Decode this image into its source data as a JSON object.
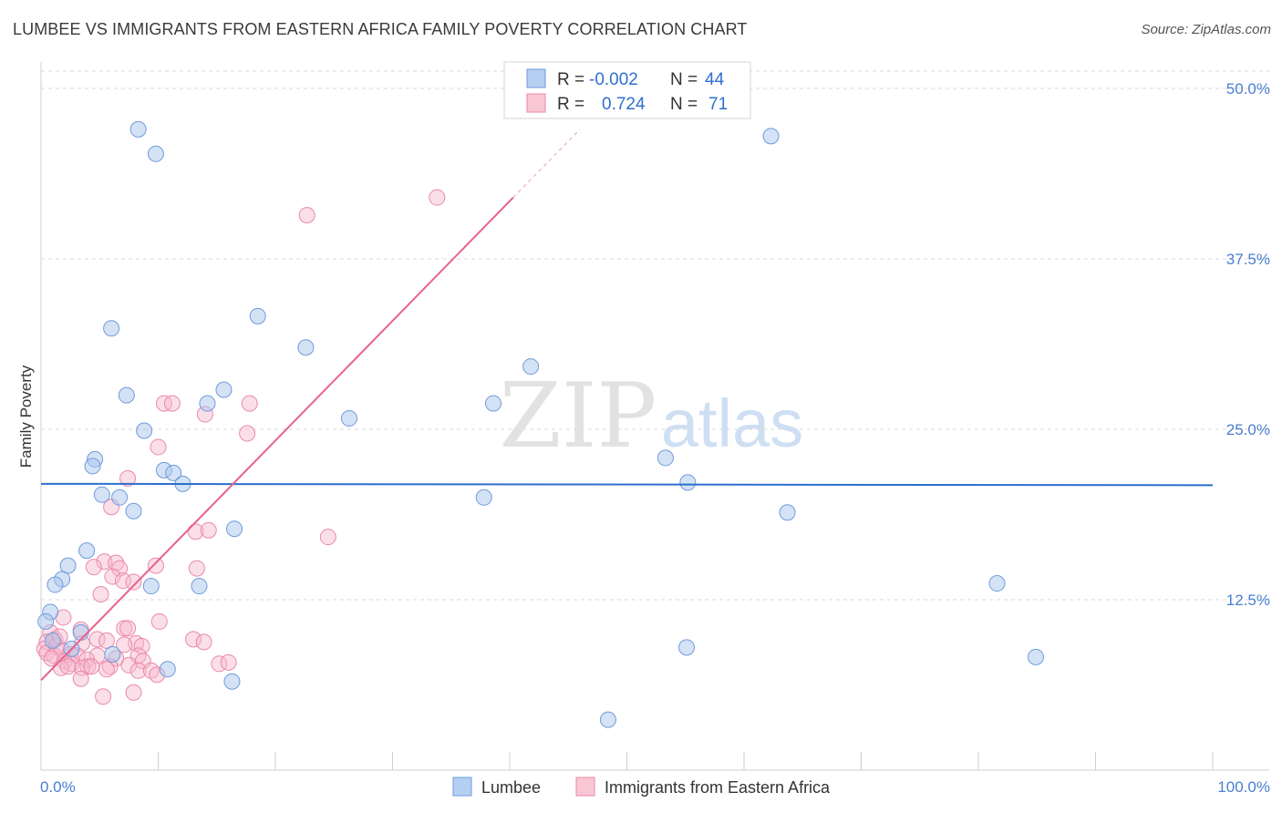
{
  "title": "LUMBEE VS IMMIGRANTS FROM EASTERN AFRICA FAMILY POVERTY CORRELATION CHART",
  "source": "Source: ZipAtlas.com",
  "watermark": {
    "zip": "ZIP",
    "atlas": "atlas"
  },
  "legend": {
    "r_label": "R =",
    "n_label": "N =",
    "rows": [
      {
        "series": "Lumbee",
        "r": "-0.002",
        "n": "44"
      },
      {
        "series": "Immigrants from Eastern Africa",
        "r": "0.724",
        "n": "71"
      }
    ]
  },
  "colors": {
    "lumbee_fill": "#a9c6ee",
    "lumbee_stroke": "#6f9bdc",
    "lumbee_line": "#2c6fcc",
    "eaf_fill": "#f6b8cb",
    "eaf_stroke": "#ea8aa8",
    "eaf_line": "#e8608e",
    "grid": "#d8d8d8",
    "tick_text": "#4a7fd0"
  },
  "chart_data": {
    "type": "scatter",
    "title": "LUMBEE VS IMMIGRANTS FROM EASTERN AFRICA FAMILY POVERTY CORRELATION CHART",
    "xlabel": "",
    "ylabel": "Family Poverty",
    "xlim": [
      0,
      100
    ],
    "ylim": [
      0,
      50
    ],
    "x_tick_labels": [
      "0.0%",
      "100.0%"
    ],
    "y_ticks": [
      12.5,
      25.0,
      37.5,
      50.0
    ],
    "y_tick_labels": [
      "12.5%",
      "25.0%",
      "37.5%",
      "50.0%"
    ],
    "grid": true,
    "legend_bottom": [
      "Lumbee",
      "Immigrants from Eastern Africa"
    ],
    "series": [
      {
        "name": "Lumbee",
        "r": -0.002,
        "n": 44,
        "trend": {
          "x": [
            0,
            100
          ],
          "y": [
            21.0,
            20.9
          ]
        },
        "points": [
          [
            8.3,
            47.0
          ],
          [
            9.8,
            45.2
          ],
          [
            62.3,
            46.5
          ],
          [
            6.0,
            32.4
          ],
          [
            18.5,
            33.3
          ],
          [
            22.6,
            31.0
          ],
          [
            41.8,
            29.6
          ],
          [
            7.3,
            27.5
          ],
          [
            15.6,
            27.9
          ],
          [
            14.2,
            26.9
          ],
          [
            38.6,
            26.9
          ],
          [
            26.3,
            25.8
          ],
          [
            8.8,
            24.9
          ],
          [
            4.6,
            22.8
          ],
          [
            4.4,
            22.3
          ],
          [
            10.5,
            22.0
          ],
          [
            11.3,
            21.8
          ],
          [
            12.1,
            21.0
          ],
          [
            55.2,
            21.1
          ],
          [
            53.3,
            22.9
          ],
          [
            5.2,
            20.2
          ],
          [
            6.7,
            20.0
          ],
          [
            37.8,
            20.0
          ],
          [
            7.9,
            19.0
          ],
          [
            63.7,
            18.9
          ],
          [
            16.5,
            17.7
          ],
          [
            3.9,
            16.1
          ],
          [
            2.3,
            15.0
          ],
          [
            1.8,
            14.0
          ],
          [
            1.2,
            13.6
          ],
          [
            9.4,
            13.5
          ],
          [
            13.5,
            13.5
          ],
          [
            81.6,
            13.7
          ],
          [
            0.8,
            11.6
          ],
          [
            0.4,
            10.9
          ],
          [
            3.4,
            10.1
          ],
          [
            6.1,
            8.5
          ],
          [
            55.1,
            9.0
          ],
          [
            84.9,
            8.3
          ],
          [
            10.8,
            7.4
          ],
          [
            16.3,
            6.5
          ],
          [
            48.4,
            3.7
          ],
          [
            2.6,
            8.9
          ],
          [
            1.0,
            9.5
          ]
        ]
      },
      {
        "name": "Immigrants from Eastern Africa",
        "r": 0.724,
        "n": 71,
        "trend": {
          "x": [
            0,
            40.3
          ],
          "y": [
            6.6,
            42.0
          ],
          "dashed_to": {
            "x": 46.0,
            "y": 47.0
          }
        },
        "points": [
          [
            33.8,
            42.0
          ],
          [
            22.7,
            40.7
          ],
          [
            10.5,
            26.9
          ],
          [
            11.2,
            26.9
          ],
          [
            17.8,
            26.9
          ],
          [
            14.0,
            26.1
          ],
          [
            17.6,
            24.7
          ],
          [
            10.0,
            23.7
          ],
          [
            7.4,
            21.4
          ],
          [
            6.0,
            19.3
          ],
          [
            13.2,
            17.5
          ],
          [
            14.3,
            17.6
          ],
          [
            24.5,
            17.1
          ],
          [
            5.4,
            15.3
          ],
          [
            6.4,
            15.2
          ],
          [
            9.8,
            15.0
          ],
          [
            4.5,
            14.9
          ],
          [
            13.3,
            14.8
          ],
          [
            6.7,
            14.8
          ],
          [
            6.1,
            14.2
          ],
          [
            7.0,
            13.9
          ],
          [
            7.9,
            13.8
          ],
          [
            5.1,
            12.9
          ],
          [
            1.9,
            11.2
          ],
          [
            10.1,
            10.9
          ],
          [
            3.4,
            10.3
          ],
          [
            7.1,
            10.4
          ],
          [
            7.4,
            10.4
          ],
          [
            0.8,
            10.1
          ],
          [
            1.2,
            9.6
          ],
          [
            0.5,
            9.4
          ],
          [
            4.8,
            9.6
          ],
          [
            5.6,
            9.5
          ],
          [
            8.1,
            9.3
          ],
          [
            13.0,
            9.6
          ],
          [
            1.3,
            9.1
          ],
          [
            3.5,
            9.3
          ],
          [
            7.1,
            9.2
          ],
          [
            8.6,
            9.1
          ],
          [
            0.3,
            8.9
          ],
          [
            0.5,
            8.6
          ],
          [
            1.1,
            8.4
          ],
          [
            1.8,
            8.8
          ],
          [
            2.5,
            8.5
          ],
          [
            3.1,
            8.4
          ],
          [
            4.8,
            8.4
          ],
          [
            6.4,
            8.2
          ],
          [
            8.3,
            8.4
          ],
          [
            0.9,
            8.2
          ],
          [
            2.0,
            8.0
          ],
          [
            2.6,
            7.8
          ],
          [
            3.9,
            8.1
          ],
          [
            4.0,
            7.6
          ],
          [
            5.9,
            7.6
          ],
          [
            8.7,
            8.0
          ],
          [
            7.5,
            7.7
          ],
          [
            15.2,
            7.8
          ],
          [
            16.0,
            7.9
          ],
          [
            1.7,
            7.5
          ],
          [
            3.5,
            7.5
          ],
          [
            4.3,
            7.6
          ],
          [
            5.6,
            7.4
          ],
          [
            8.3,
            7.3
          ],
          [
            9.4,
            7.3
          ],
          [
            9.9,
            7.0
          ],
          [
            3.4,
            6.7
          ],
          [
            13.9,
            9.4
          ],
          [
            2.3,
            7.6
          ],
          [
            5.3,
            5.4
          ],
          [
            7.9,
            5.7
          ],
          [
            1.6,
            9.8
          ]
        ]
      }
    ]
  }
}
